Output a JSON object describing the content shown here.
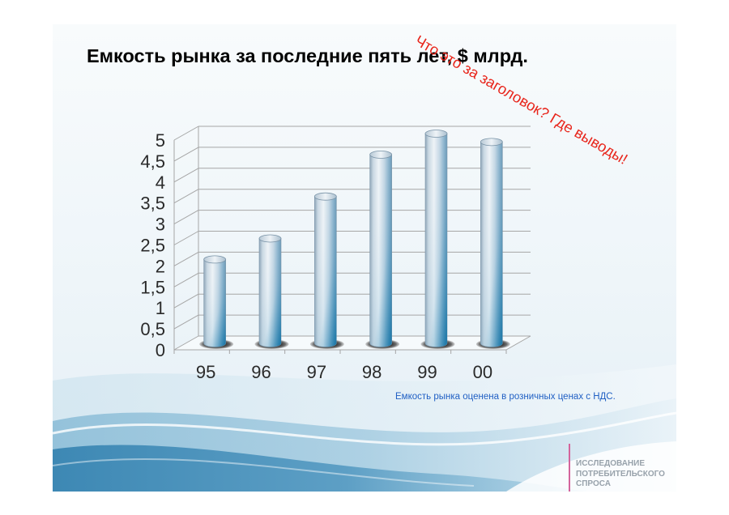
{
  "slide": {
    "annotation": "Что это за заголовок? Где выводы!",
    "footnote": "Емкость рынка оценена в розничных ценах с НДС.",
    "brand_lines": [
      "ИССЛЕДОВАНИЕ",
      "ПОТРЕБИТЕЛЬСКОГО",
      "СПРОСА"
    ]
  },
  "colors": {
    "annotation": "#e8251b",
    "footnote": "#2160c4",
    "brand_text": "#98a2ab",
    "brand_divider": "#d4649c"
  },
  "chart_data": {
    "type": "bar",
    "style": "3d-cylinder",
    "title": "Емкость рынка за последние пять лет, $ млрд.",
    "categories": [
      "95",
      "96",
      "97",
      "98",
      "99",
      "00"
    ],
    "values": [
      2,
      2.5,
      3.5,
      4.5,
      5,
      4.8
    ],
    "yticks": [
      0,
      0.5,
      1,
      1.5,
      2,
      2.5,
      3,
      3.5,
      4,
      4.5,
      5
    ],
    "ytick_labels": [
      "0",
      "0,5",
      "1",
      "1,5",
      "2",
      "2,5",
      "3",
      "3,5",
      "4",
      "4,5",
      "5"
    ],
    "ylim": [
      0,
      5
    ],
    "grid": true
  }
}
